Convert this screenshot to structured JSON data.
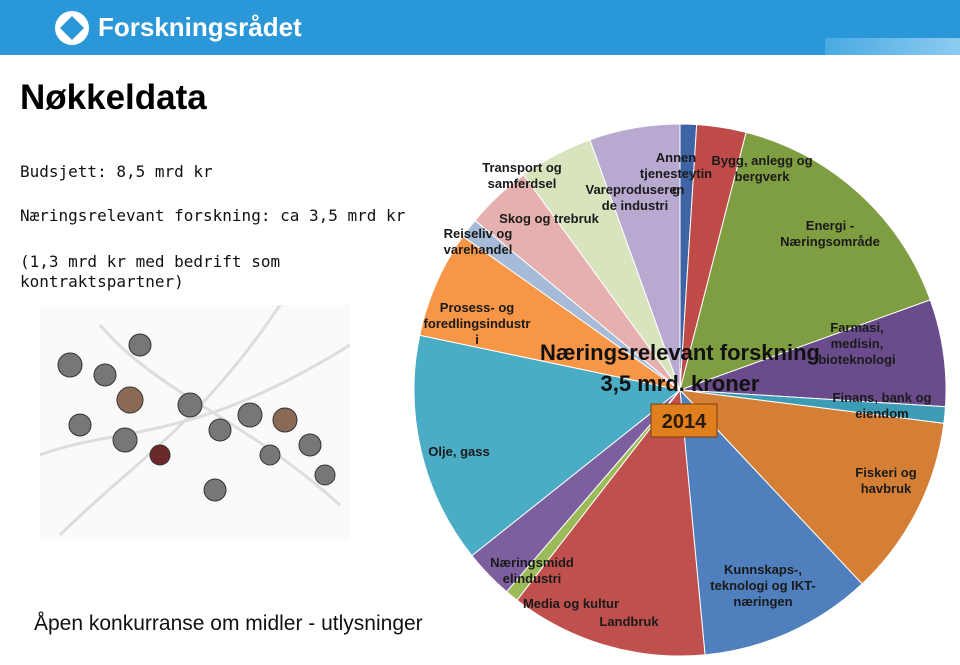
{
  "header": {
    "logo": "Forskningsrådet"
  },
  "slide": {
    "title": "Nøkkeldata",
    "lines": [
      "Budsjett: 8,5 mrd kr",
      "Næringsrelevant forskning: ca 3,5 mrd kr",
      "(1,3 mrd kr med bedrift som kontraktspartner)"
    ],
    "footer": "Åpen konkurranse om midler - utlysninger"
  },
  "chart_data": {
    "type": "pie",
    "title": "Næringsrelevant forskning",
    "subtitle": "3,5 mrd. kroner",
    "annotation": "2014",
    "categories": [
      "Annen tjenesteyting",
      "Bygg, anlegg og bergverk",
      "Energi - Næringsområde",
      "Farmasi, medisin, bioteknologi",
      "Finans, bank og eiendom",
      "Fiskeri og havbruk",
      "Kunnskaps-, teknologi og IKT-næringen",
      "Landbruk",
      "Media og kultur",
      "Næringsmiddelindustri",
      "Olje, gass",
      "Prosess- og foredlingsindustri",
      "Reiseliv og varehandel",
      "Skog og trebruk",
      "Transport og samferdsel",
      "Vareproduserende industri"
    ],
    "values": [
      1,
      3,
      15.5,
      6.5,
      1,
      11,
      10.5,
      12,
      0.8,
      3,
      14,
      6.5,
      1.2,
      4,
      4.5,
      5.5
    ],
    "colors": [
      "#3f64a6",
      "#be4b48",
      "#7f9d41",
      "#6a4c8c",
      "#3c9cb5",
      "#d47f35",
      "#4f7fbd",
      "#c0504d",
      "#9bbb59",
      "#7d5fa0",
      "#4bacc6",
      "#f79646",
      "#a5bbd8",
      "#e6b0ae",
      "#d7e4bd",
      "#b7a9cf"
    ]
  }
}
